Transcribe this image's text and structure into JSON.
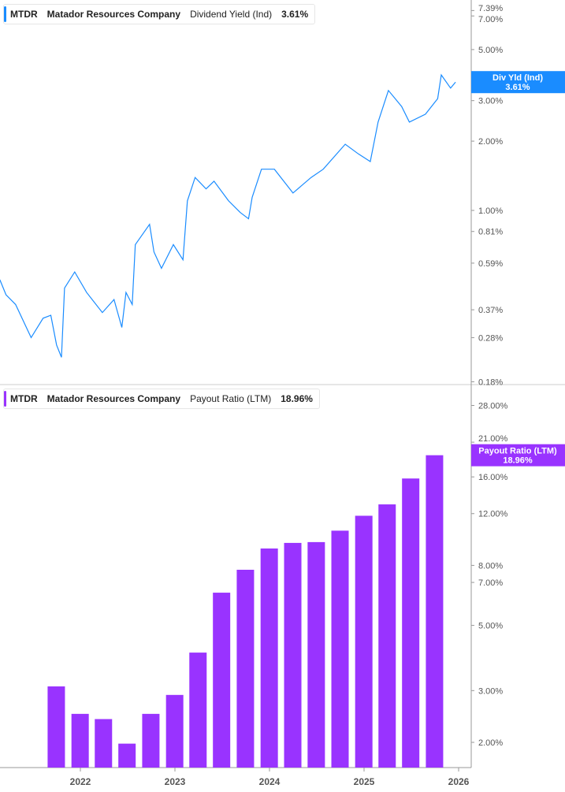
{
  "colors": {
    "dividend_yield": "#1a8cff",
    "payout_ratio": "#9933ff",
    "axis": "#999999",
    "text": "#555555"
  },
  "chart_data": [
    {
      "type": "line",
      "ticker": "MTDR",
      "company": "Matador Resources Company",
      "metric": "Dividend Yield (Ind)",
      "current_value": "3.61%",
      "badge_label": "Div Yld (Ind)",
      "badge_value": "3.61%",
      "y_scale": "log",
      "y_ticks": [
        "7.39%",
        "7.00%",
        "5.00%",
        "3.00%",
        "2.00%",
        "1.00%",
        "0.81%",
        "0.59%",
        "0.37%",
        "0.28%",
        "0.18%"
      ],
      "y_tick_values": [
        7.39,
        7.0,
        5.0,
        3.0,
        2.0,
        1.0,
        0.81,
        0.59,
        0.37,
        0.28,
        0.18
      ],
      "points": [
        [
          "2021-02-24",
          0.5
        ],
        [
          "2021-03-20",
          0.43
        ],
        [
          "2021-04-26",
          0.39
        ],
        [
          "2021-06-25",
          0.28
        ],
        [
          "2021-08-10",
          0.34
        ],
        [
          "2021-09-09",
          0.35
        ],
        [
          "2021-10-01",
          0.26
        ],
        [
          "2021-10-20",
          0.23
        ],
        [
          "2021-11-01",
          0.46
        ],
        [
          "2021-12-10",
          0.54
        ],
        [
          "2022-01-25",
          0.44
        ],
        [
          "2022-03-27",
          0.36
        ],
        [
          "2022-05-11",
          0.41
        ],
        [
          "2022-06-10",
          0.31
        ],
        [
          "2022-06-26",
          0.44
        ],
        [
          "2022-07-20",
          0.39
        ],
        [
          "2022-08-01",
          0.71
        ],
        [
          "2022-09-25",
          0.87
        ],
        [
          "2022-10-12",
          0.66
        ],
        [
          "2022-11-10",
          0.56
        ],
        [
          "2022-12-26",
          0.71
        ],
        [
          "2023-02-01",
          0.61
        ],
        [
          "2023-02-18",
          1.1
        ],
        [
          "2023-03-20",
          1.39
        ],
        [
          "2023-05-01",
          1.24
        ],
        [
          "2023-06-01",
          1.34
        ],
        [
          "2023-07-27",
          1.1
        ],
        [
          "2023-09-10",
          0.98
        ],
        [
          "2023-10-12",
          0.92
        ],
        [
          "2023-10-26",
          1.14
        ],
        [
          "2023-12-01",
          1.51
        ],
        [
          "2024-01-20",
          1.51
        ],
        [
          "2024-04-01",
          1.19
        ],
        [
          "2024-06-10",
          1.39
        ],
        [
          "2024-07-27",
          1.51
        ],
        [
          "2024-10-20",
          1.94
        ],
        [
          "2024-12-10",
          1.76
        ],
        [
          "2025-01-25",
          1.63
        ],
        [
          "2025-02-24",
          2.42
        ],
        [
          "2025-04-05",
          3.32
        ],
        [
          "2025-05-26",
          2.83
        ],
        [
          "2025-06-25",
          2.42
        ],
        [
          "2025-08-26",
          2.62
        ],
        [
          "2025-10-12",
          3.06
        ],
        [
          "2025-10-26",
          3.88
        ],
        [
          "2025-12-01",
          3.4
        ],
        [
          "2025-12-20",
          3.61
        ]
      ]
    },
    {
      "type": "bar",
      "ticker": "MTDR",
      "company": "Matador Resources Company",
      "metric": "Payout Ratio (LTM)",
      "current_value": "18.96%",
      "badge_label": "Payout Ratio (LTM)",
      "badge_value": "18.96%",
      "y_scale": "log",
      "y_ticks": [
        "28.00%",
        "21.00%",
        "16.00%",
        "12.00%",
        "8.00%",
        "7.00%",
        "5.00%",
        "3.00%",
        "2.00%"
      ],
      "y_tick_values": [
        28,
        21,
        16,
        12,
        8,
        7,
        5,
        3,
        2
      ],
      "categories": [
        "2021-09-30",
        "2021-12-31",
        "2022-03-31",
        "2022-06-30",
        "2022-09-30",
        "2022-12-31",
        "2023-03-31",
        "2023-06-30",
        "2023-09-30",
        "2023-12-31",
        "2024-03-31",
        "2024-06-30",
        "2024-09-30",
        "2024-12-31",
        "2025-03-31",
        "2025-06-30",
        "2025-09-30"
      ],
      "values": [
        3.1,
        2.5,
        2.4,
        1.98,
        2.5,
        2.9,
        4.04,
        6.46,
        7.73,
        9.13,
        9.54,
        9.6,
        10.5,
        11.8,
        12.9,
        15.8,
        18.96
      ]
    }
  ],
  "x_axis": {
    "ticks": [
      "2022",
      "2023",
      "2024",
      "2025",
      "2026"
    ]
  }
}
